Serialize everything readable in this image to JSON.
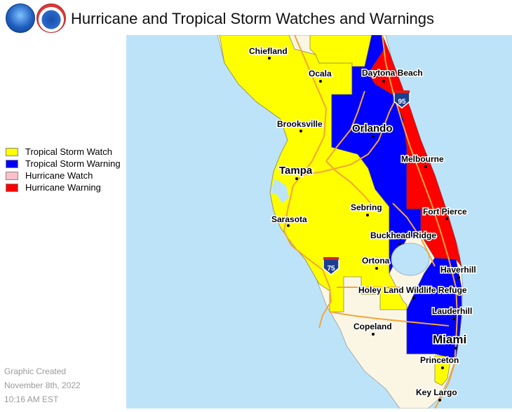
{
  "title": "Hurricane and Tropical Storm Watches and Warnings",
  "logos": {
    "left": "noaa-logo",
    "right": "nws-logo"
  },
  "legend": [
    {
      "label": "Tropical Storm Watch",
      "color": "#ffff00"
    },
    {
      "label": "Tropical Storm Warning",
      "color": "#0000ff"
    },
    {
      "label": "Hurricane Watch",
      "color": "#ffc0cb"
    },
    {
      "label": "Hurricane Warning",
      "color": "#ff0000"
    }
  ],
  "colors": {
    "water": "#bde3f8",
    "land": "#fbf6e4",
    "roads": "#f4a53a"
  },
  "cities": {
    "chiefland": "Chiefland",
    "ocala": "Ocala",
    "daytona": "Daytona Beach",
    "brooksville": "Brooksville",
    "orlando": "Orlando",
    "tampa": "Tampa",
    "melbourne": "Melbourne",
    "sebring": "Sebring",
    "fortpierce": "Fort Pierce",
    "sarasota": "Sarasota",
    "buckhead": "Buckhead Ridge",
    "ortona": "Ortona",
    "haverhill": "Haverhill",
    "holeyland": "Holey Land Wildlife Refuge",
    "lauderhill": "Lauderhill",
    "copeland": "Copeland",
    "miami": "Miami",
    "princeton": "Princeton",
    "keylargo": "Key Largo"
  },
  "shields": {
    "i95": "95",
    "i75": "75"
  },
  "footer": {
    "line1": "Graphic Created",
    "line2": "November 8th, 2022",
    "line3": "10:16 AM EST"
  }
}
